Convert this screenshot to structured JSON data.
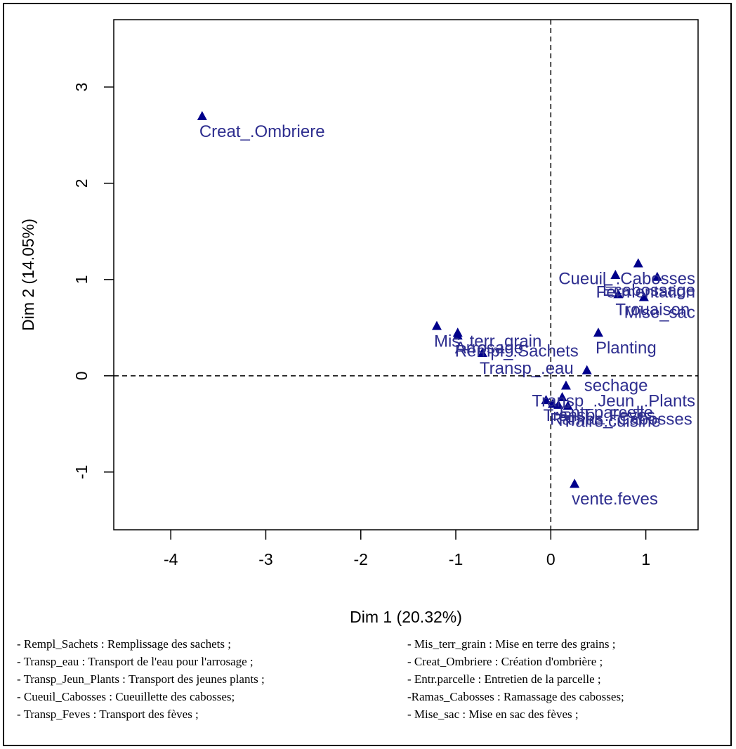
{
  "chart_data": {
    "type": "scatter",
    "title": "",
    "xlabel": "Dim 1 (20.32%)",
    "ylabel": "Dim 2 (14.05%)",
    "xlim": [
      -4.6,
      1.55
    ],
    "ylim": [
      -1.6,
      3.7
    ],
    "xticks": [
      -4,
      -3,
      -2,
      -1,
      0,
      1
    ],
    "yticks": [
      -1,
      0,
      1,
      2,
      3
    ],
    "reference_lines": {
      "x": 0,
      "y": 0,
      "style": "dashed"
    },
    "marker": "triangle",
    "point_color": "#00008b",
    "label_color": "#2e2e8f",
    "points": [
      {
        "label": "Creat_.Ombriere",
        "x": -3.67,
        "y": 2.7
      },
      {
        "label": "Cueuil_.Cabosses",
        "x": 0.92,
        "y": 1.17
      },
      {
        "label": "Fermentation",
        "x": 1.12,
        "y": 1.03
      },
      {
        "label": "Ecabossage",
        "x": 0.68,
        "y": 1.05
      },
      {
        "label": "Trouaison",
        "x": 0.71,
        "y": 0.85
      },
      {
        "label": "Mise_sac",
        "x": 0.98,
        "y": 0.82
      },
      {
        "label": "Planting",
        "x": 0.5,
        "y": 0.45
      },
      {
        "label": "sechage",
        "x": 0.38,
        "y": 0.06
      },
      {
        "label": "Mis_terr_grain",
        "x": -1.2,
        "y": 0.52
      },
      {
        "label": "Arrosage",
        "x": -0.98,
        "y": 0.45
      },
      {
        "label": "Rempl_.Sachets",
        "x": -0.98,
        "y": 0.42
      },
      {
        "label": "Transp_.eau",
        "x": -0.72,
        "y": 0.24
      },
      {
        "label": "Transp_.Jeun_.Plants",
        "x": 0.16,
        "y": -0.1
      },
      {
        "label": "Entr.parcelle",
        "x": 0.12,
        "y": -0.22
      },
      {
        "label": "Transp_.Feves",
        "x": -0.05,
        "y": -0.25
      },
      {
        "label": "Ramas_.Cabosses",
        "x": 0.02,
        "y": -0.29
      },
      {
        "label": "Faire.cuisine",
        "x": 0.18,
        "y": -0.31
      },
      {
        "label": "Tri",
        "x": 0.08,
        "y": -0.3
      },
      {
        "label": "vente.feves",
        "x": 0.25,
        "y": -1.12
      }
    ],
    "legend_notes": {
      "left": [
        "- Rempl_Sachets : Remplissage des sachets ;",
        "- Transp_eau : Transport de l'eau pour l'arrosage ;",
        "- Transp_Jeun_Plants : Transport des jeunes plants ;",
        "- Cueuil_Cabosses : Cueuillette des cabosses;",
        "- Transp_Feves : Transport des fèves ;"
      ],
      "right": [
        "- Mis_terr_grain : Mise en terre des grains ;",
        "- Creat_Ombriere : Création d'ombrière ;",
        "- Entr.parcelle : Entretien de la parcelle ;",
        "-Ramas_Cabosses : Ramassage des cabosses;",
        "- Mise_sac : Mise en sac des fèves ;"
      ]
    }
  }
}
